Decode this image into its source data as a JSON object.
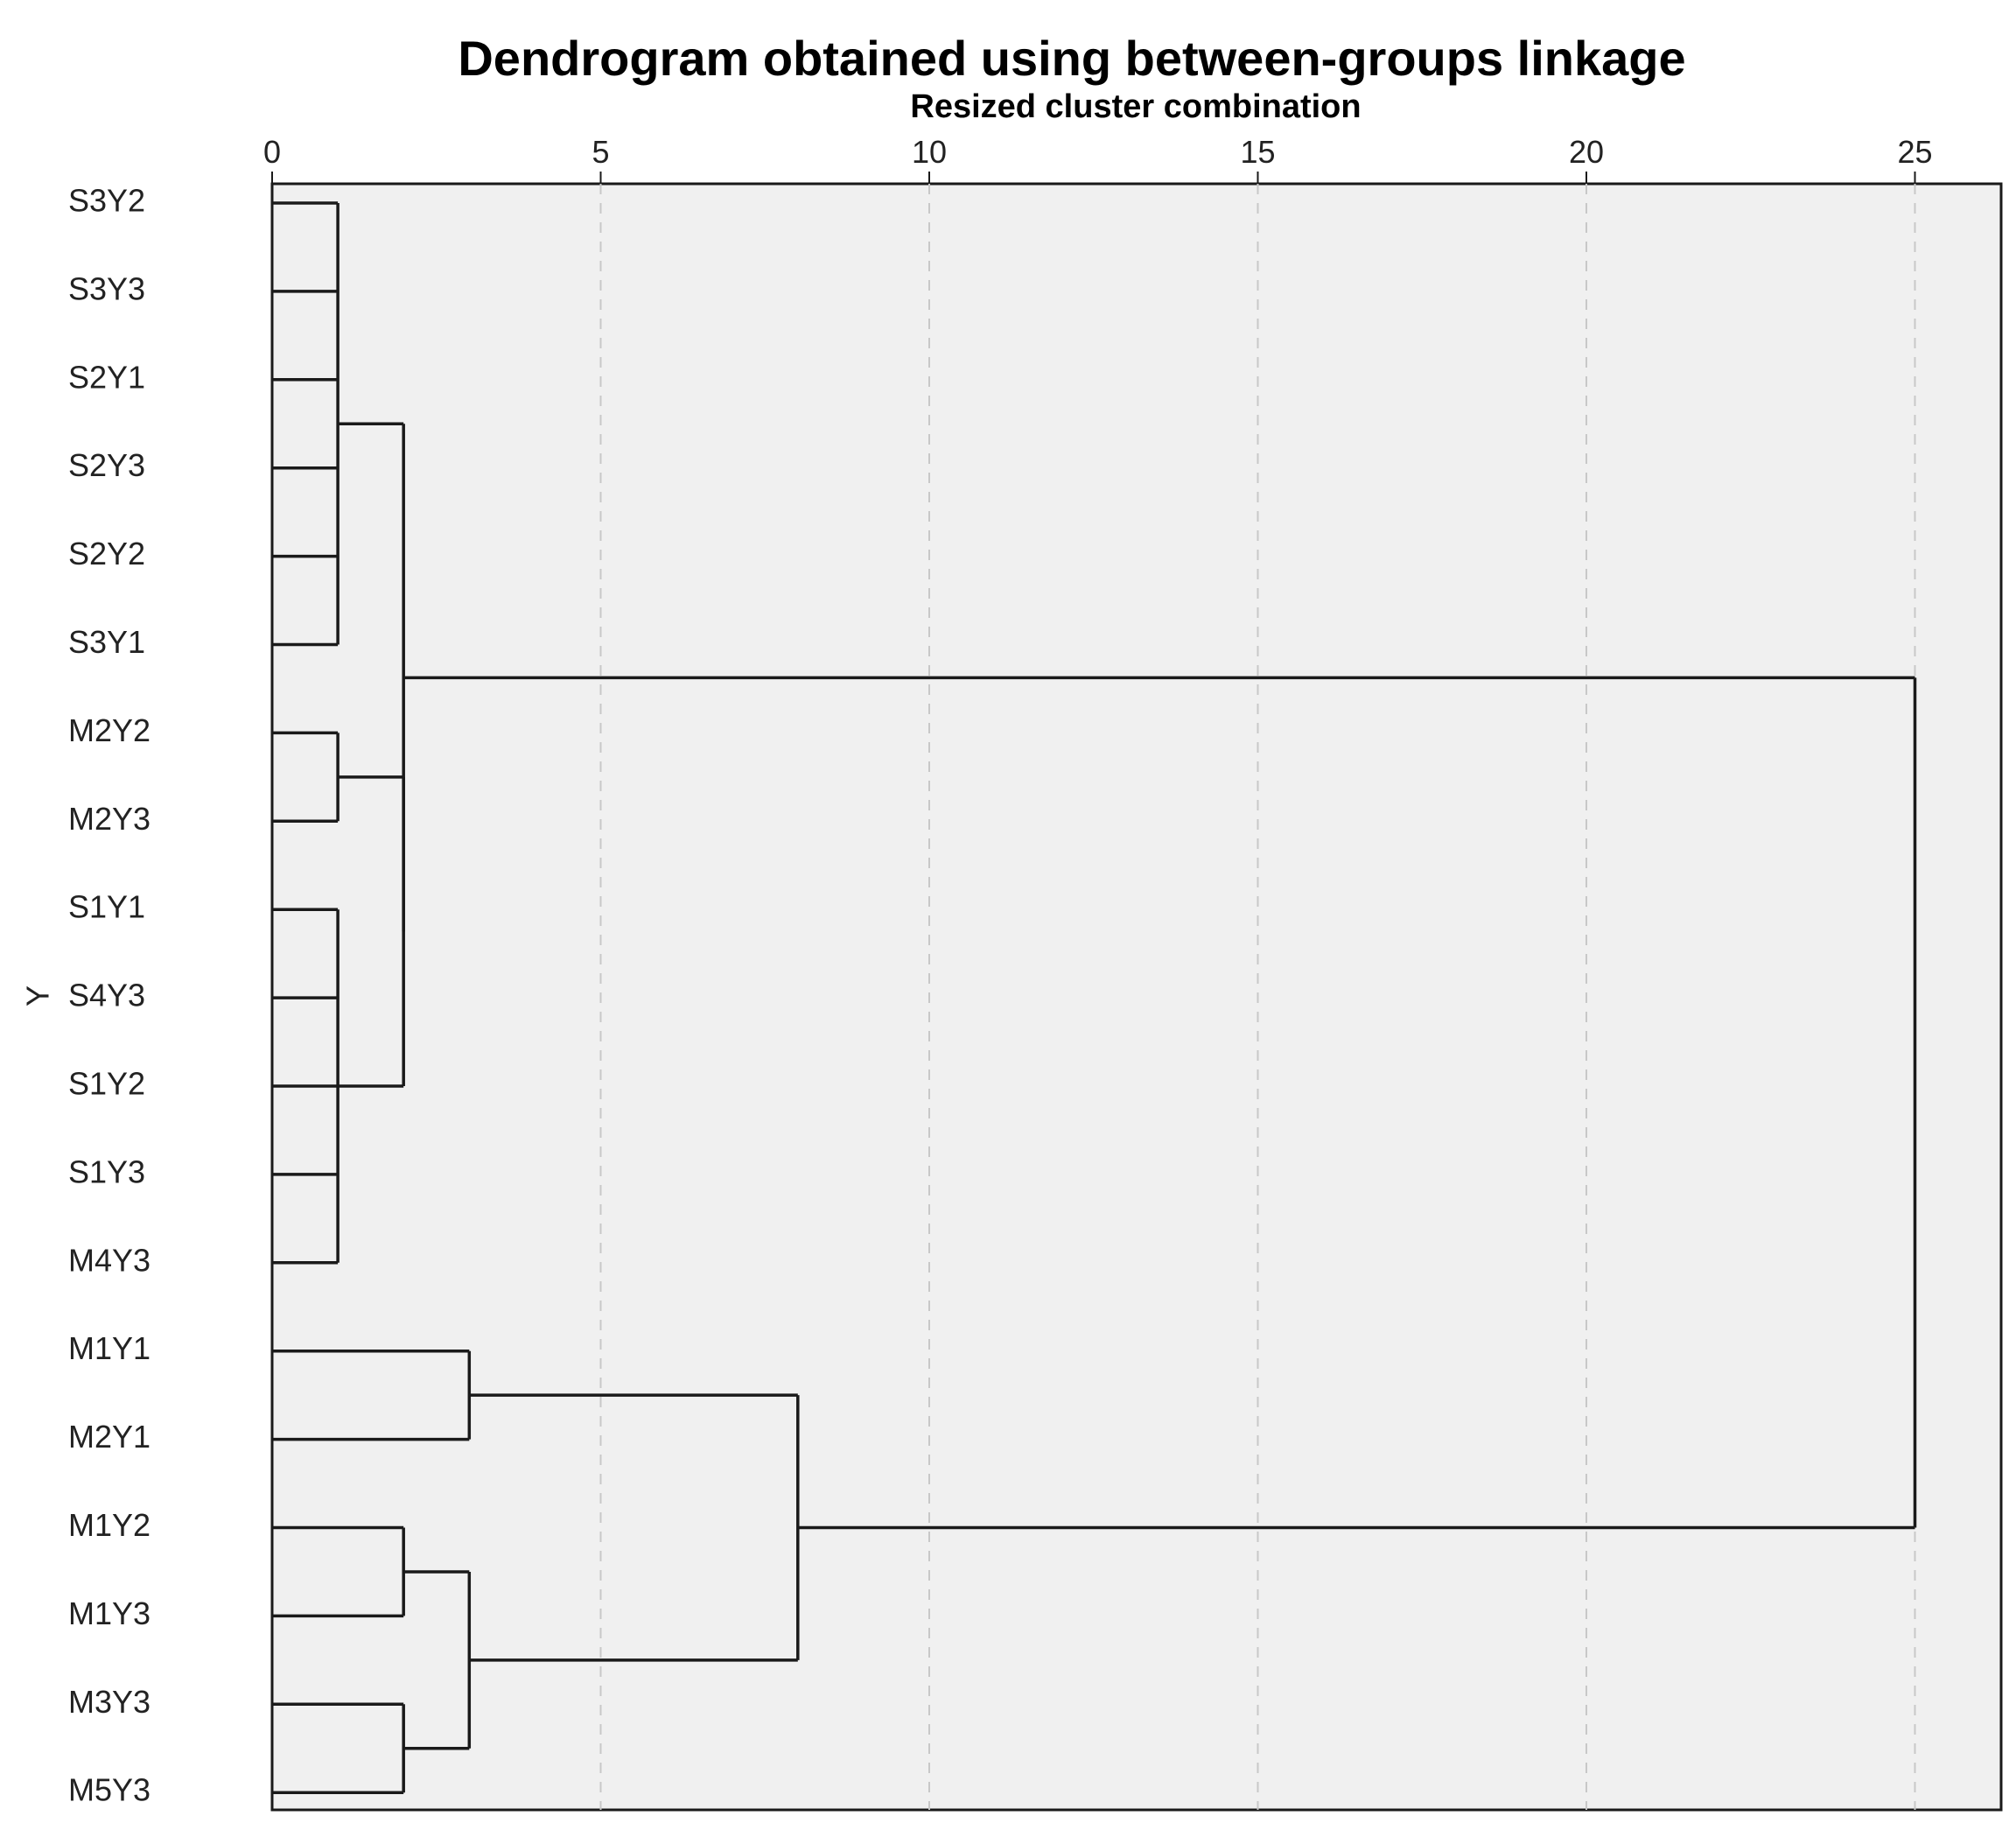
{
  "chart_data": {
    "type": "dendrogram",
    "title": "Dendrogram obtained using between-groups linkage",
    "xlabel": "Resized cluster combination",
    "ylabel": "Y",
    "xlim": [
      0,
      26.3
    ],
    "xticks": [
      0,
      5,
      10,
      15,
      20,
      25
    ],
    "x_axis_position": "top",
    "grid": "vertical dashed",
    "leaves": [
      "S3Y2",
      "S3Y3",
      "S2Y1",
      "S2Y3",
      "S2Y2",
      "S3Y1",
      "M2Y2",
      "M2Y3",
      "S1Y1",
      "S4Y3",
      "S1Y2",
      "S1Y3",
      "M4Y3",
      "M1Y1",
      "M2Y1",
      "M1Y2",
      "M1Y3",
      "M3Y3",
      "M5Y3"
    ],
    "merges": [
      {
        "id": "c1",
        "children": [
          "S3Y2",
          "S3Y3",
          "S2Y1",
          "S2Y3",
          "S2Y2",
          "S3Y1"
        ],
        "height": 1
      },
      {
        "id": "c2",
        "children": [
          "M2Y2",
          "M2Y3"
        ],
        "height": 1
      },
      {
        "id": "c3",
        "children": [
          "S1Y1",
          "S4Y3",
          "S1Y2",
          "S1Y3",
          "M4Y3"
        ],
        "height": 1
      },
      {
        "id": "c4",
        "children": [
          "c2",
          "c3"
        ],
        "height": 2
      },
      {
        "id": "c5",
        "children": [
          "c1",
          "c4"
        ],
        "height": 2
      },
      {
        "id": "c6",
        "children": [
          "M1Y1",
          "M2Y1"
        ],
        "height": 3
      },
      {
        "id": "c7",
        "children": [
          "M1Y2",
          "M1Y3"
        ],
        "height": 2
      },
      {
        "id": "c8",
        "children": [
          "M3Y3",
          "M5Y3"
        ],
        "height": 2
      },
      {
        "id": "c9",
        "children": [
          "c7",
          "c8"
        ],
        "height": 3
      },
      {
        "id": "c10",
        "children": [
          "c6",
          "c9"
        ],
        "height": 8
      },
      {
        "id": "c11",
        "children": [
          "c5",
          "c10"
        ],
        "height": 25
      }
    ]
  }
}
